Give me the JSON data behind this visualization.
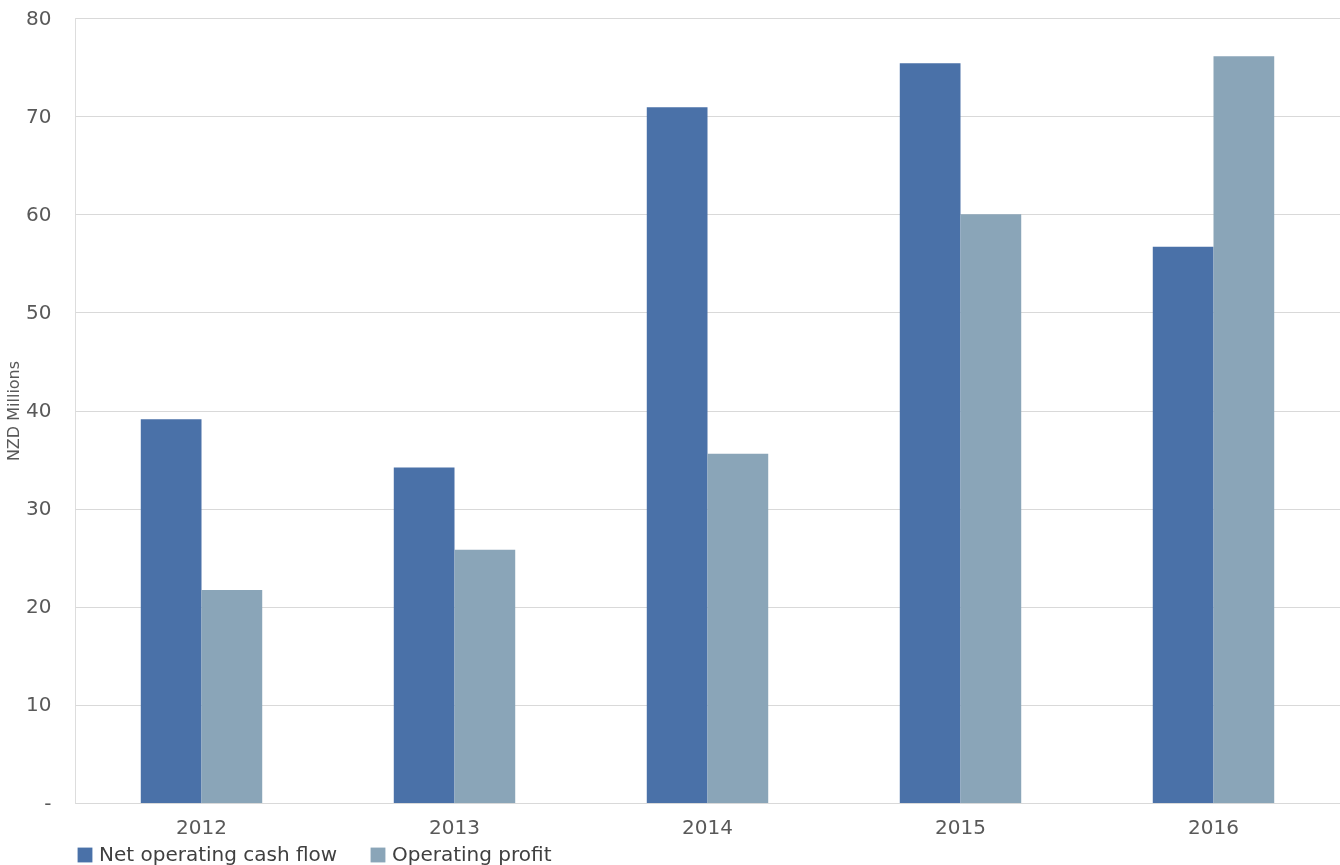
{
  "chart_data": {
    "type": "bar",
    "ylabel": "NZD Millions",
    "categories": [
      "2012",
      "2013",
      "2014",
      "2015",
      "2016"
    ],
    "series": [
      {
        "name": "Net operating cash flow",
        "color": "#4a71a8",
        "values": [
          39.1,
          34.2,
          70.9,
          75.4,
          56.7
        ]
      },
      {
        "name": "Operating profit",
        "color": "#8aa5b8",
        "values": [
          21.7,
          25.8,
          35.6,
          60.0,
          76.1
        ]
      }
    ],
    "ylim": [
      0,
      80
    ],
    "yticks": [
      {
        "value": 0,
        "label": "-"
      },
      10,
      20,
      30,
      40,
      50,
      60,
      70,
      80
    ],
    "grid": "y",
    "legend": "bottom"
  }
}
